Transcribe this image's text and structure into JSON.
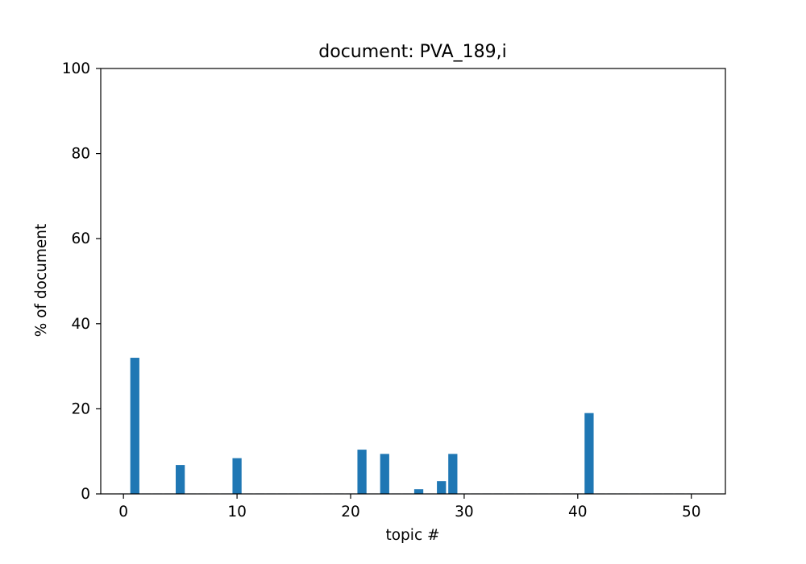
{
  "chart_data": {
    "type": "bar",
    "title": "document: PVA_189,i",
    "xlabel": "topic #",
    "ylabel": "% of document",
    "xlim": [
      -2,
      53
    ],
    "ylim": [
      0,
      100
    ],
    "xticks": [
      0,
      10,
      20,
      30,
      40,
      50
    ],
    "yticks": [
      0,
      20,
      40,
      60,
      80,
      100
    ],
    "bar_width": 0.8,
    "color": "#1f77b4",
    "grid": false,
    "legend": "none",
    "x": [
      0,
      1,
      2,
      3,
      4,
      5,
      6,
      7,
      8,
      9,
      10,
      11,
      12,
      13,
      14,
      15,
      16,
      17,
      18,
      19,
      20,
      21,
      22,
      23,
      24,
      25,
      26,
      27,
      28,
      29,
      30,
      31,
      32,
      33,
      34,
      35,
      36,
      37,
      38,
      39,
      40,
      41,
      42,
      43,
      44,
      45,
      46,
      47,
      48,
      49,
      50
    ],
    "values": [
      0.1,
      32,
      0.1,
      0.1,
      0.1,
      6.8,
      0.1,
      0.1,
      0.1,
      0.1,
      8.4,
      0.1,
      0.1,
      0.1,
      0.1,
      0.1,
      0.1,
      0.1,
      0.1,
      0.1,
      0.1,
      10.4,
      0.1,
      9.4,
      0.1,
      0.1,
      1.1,
      0.1,
      3.0,
      9.4,
      0.1,
      0.1,
      0.1,
      0.1,
      0.1,
      0.1,
      0.1,
      0.1,
      0.1,
      0.1,
      0.1,
      19.0,
      0.1,
      0.1,
      0.1,
      0.1,
      0.1,
      0.1,
      0.1,
      0.1,
      0.1
    ]
  }
}
